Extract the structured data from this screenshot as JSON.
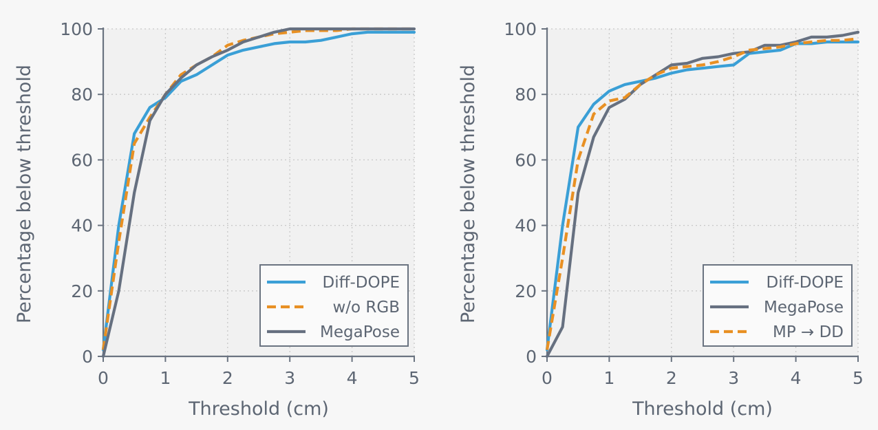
{
  "chart_data": [
    {
      "type": "line",
      "xlabel": "Threshold (cm)",
      "ylabel": "Percentage below threshold",
      "xlim": [
        0,
        5
      ],
      "ylim": [
        0,
        100
      ],
      "xticks": [
        0,
        1,
        2,
        3,
        4,
        5
      ],
      "yticks": [
        0,
        20,
        40,
        60,
        80,
        100
      ],
      "grid": true,
      "legend_position": "lower-right",
      "series": [
        {
          "name": "Diff-DOPE",
          "color": "#3a9fd6",
          "style": "solid",
          "x": [
            0,
            0.25,
            0.5,
            0.75,
            1.0,
            1.25,
            1.5,
            1.75,
            2.0,
            2.25,
            2.5,
            2.75,
            3.0,
            3.25,
            3.5,
            3.75,
            4.0,
            4.25,
            4.5,
            4.75,
            5.0
          ],
          "y": [
            2,
            40,
            68,
            76,
            79,
            84,
            86,
            89,
            92,
            93.5,
            94.5,
            95.5,
            96,
            96,
            96.5,
            97.5,
            98.5,
            99,
            99,
            99,
            99
          ]
        },
        {
          "name": "w/o RGB",
          "color": "#e89023",
          "style": "dashed",
          "x": [
            0,
            0.25,
            0.5,
            0.75,
            1.0,
            1.25,
            1.5,
            1.75,
            2.0,
            2.25,
            2.5,
            2.75,
            3.0,
            3.25,
            3.5,
            3.75,
            4.0,
            4.25,
            4.5,
            4.75,
            5.0
          ],
          "y": [
            2,
            35,
            65,
            73,
            80,
            86,
            89,
            91.5,
            95,
            96.5,
            97.5,
            98.5,
            99,
            99.5,
            99.5,
            99.5,
            100,
            100,
            100,
            100,
            100
          ]
        },
        {
          "name": "MegaPose",
          "color": "#667080",
          "style": "solid",
          "x": [
            0,
            0.25,
            0.5,
            0.75,
            1.0,
            1.25,
            1.5,
            1.75,
            2.0,
            2.25,
            2.5,
            2.75,
            3.0,
            3.25,
            3.5,
            3.75,
            4.0,
            4.25,
            4.5,
            4.75,
            5.0
          ],
          "y": [
            0,
            20,
            50,
            72,
            80,
            85,
            89,
            91.5,
            93.5,
            96,
            97.5,
            99,
            100,
            100,
            100,
            100,
            100,
            100,
            100,
            100,
            100
          ]
        }
      ]
    },
    {
      "type": "line",
      "xlabel": "Threshold (cm)",
      "ylabel": "Percentage below threshold",
      "xlim": [
        0,
        5
      ],
      "ylim": [
        0,
        100
      ],
      "xticks": [
        0,
        1,
        2,
        3,
        4,
        5
      ],
      "yticks": [
        0,
        20,
        40,
        60,
        80,
        100
      ],
      "grid": true,
      "legend_position": "lower-right",
      "series": [
        {
          "name": "Diff-DOPE",
          "color": "#3a9fd6",
          "style": "solid",
          "x": [
            0,
            0.25,
            0.5,
            0.75,
            1.0,
            1.25,
            1.5,
            1.75,
            2.0,
            2.25,
            2.5,
            2.75,
            3.0,
            3.25,
            3.5,
            3.75,
            4.0,
            4.25,
            4.5,
            4.75,
            5.0
          ],
          "y": [
            2,
            40,
            70,
            77,
            81,
            83,
            84,
            85,
            86.5,
            87.5,
            88,
            88.5,
            89,
            92.5,
            93,
            93.5,
            95.5,
            95.5,
            96,
            96,
            96
          ]
        },
        {
          "name": "MegaPose",
          "color": "#667080",
          "style": "solid",
          "x": [
            0,
            0.25,
            0.5,
            0.75,
            1.0,
            1.25,
            1.5,
            1.75,
            2.0,
            2.25,
            2.5,
            2.75,
            3.0,
            3.25,
            3.5,
            3.75,
            4.0,
            4.25,
            4.5,
            4.75,
            5.0
          ],
          "y": [
            0,
            9,
            50,
            67,
            76,
            78.5,
            83,
            86,
            89,
            89.5,
            91,
            91.5,
            92.5,
            93,
            95,
            95,
            96,
            97.5,
            97.5,
            98,
            99
          ]
        },
        {
          "name": "MP → DD",
          "color": "#e89023",
          "style": "dashed",
          "x": [
            0,
            0.25,
            0.5,
            0.75,
            1.0,
            1.25,
            1.5,
            1.75,
            2.0,
            2.25,
            2.5,
            2.75,
            3.0,
            3.25,
            3.5,
            3.75,
            4.0,
            4.25,
            4.5,
            4.75,
            5.0
          ],
          "y": [
            2,
            30,
            60,
            74,
            78,
            79,
            83,
            86,
            88,
            88.5,
            89,
            90,
            91.5,
            93.5,
            94,
            94.5,
            95.5,
            96,
            96.5,
            96.5,
            97
          ]
        }
      ]
    }
  ]
}
